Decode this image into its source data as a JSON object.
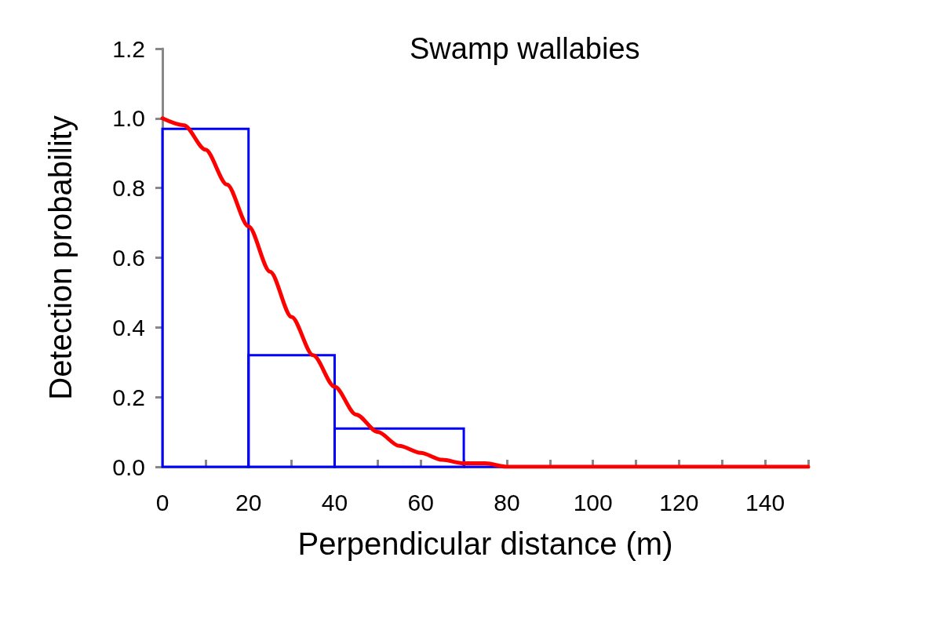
{
  "chart_data": {
    "type": "histogram",
    "title": "Swamp wallabies",
    "xlabel": "Perpendicular distance (m)",
    "ylabel": "Detection probability",
    "series": [
      {
        "color": "#0000ff",
        "bins": [
          0,
          20,
          40,
          70,
          150
        ],
        "values": [
          0.97,
          0.32,
          0.11,
          0
        ]
      },
      {
        "type": "line",
        "color": "#ff0000",
        "x": [
          0,
          5,
          10,
          15,
          20,
          25,
          30,
          35,
          40,
          45,
          50,
          55,
          60,
          65,
          70,
          75,
          80,
          90,
          100,
          150
        ],
        "values": [
          1.0,
          0.98,
          0.91,
          0.81,
          0.69,
          0.56,
          0.43,
          0.32,
          0.23,
          0.15,
          0.1,
          0.06,
          0.04,
          0.02,
          0.01,
          0.01,
          0,
          0,
          0,
          0
        ]
      }
    ],
    "xlim": [
      0,
      150
    ],
    "xticks": [
      0,
      {
        "value": 10,
        "label": null
      },
      20,
      {
        "value": 30,
        "label": null
      },
      40,
      {
        "value": 50,
        "label": null
      },
      60,
      {
        "value": 70,
        "label": null
      },
      80,
      {
        "value": 90,
        "label": null
      },
      100,
      {
        "value": 110,
        "label": null
      },
      120,
      {
        "value": 130,
        "label": null
      },
      140,
      {
        "value": 150,
        "label": null
      }
    ],
    "ylim": [
      0,
      1.2
    ],
    "yticks": [
      {
        "value": 0,
        "label": "0.0"
      },
      {
        "value": 0.2,
        "label": "0.2"
      },
      {
        "value": 0.4,
        "label": "0.4"
      },
      {
        "value": 0.6,
        "label": "0.6"
      },
      {
        "value": 0.8,
        "label": "0.8"
      },
      {
        "value": 1,
        "label": "1.0"
      },
      {
        "value": 1.2,
        "label": "1.2"
      }
    ],
    "grid": false,
    "legend": false,
    "line_style": "solid"
  }
}
